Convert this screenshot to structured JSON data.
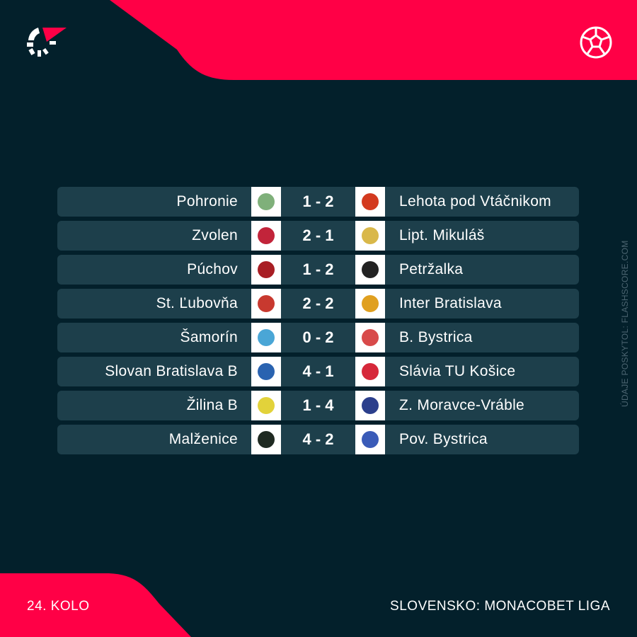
{
  "colors": {
    "background": "#03202b",
    "accent": "#ff0046",
    "row": "#1d3f4b"
  },
  "icons": {
    "brand": "flashscore-logo",
    "sport": "football-icon"
  },
  "matches": [
    {
      "home": "Pohronie",
      "score": "1 - 2",
      "away": "Lehota pod Vtáčnikom",
      "home_color": "#7fb07a",
      "away_color": "#d33a1f"
    },
    {
      "home": "Zvolen",
      "score": "2 - 1",
      "away": "Lipt. Mikuláš",
      "home_color": "#c2243a",
      "away_color": "#d9b84a"
    },
    {
      "home": "Púchov",
      "score": "1 - 2",
      "away": "Petržalka",
      "home_color": "#a81e24",
      "away_color": "#222222"
    },
    {
      "home": "St. Ľubovňa",
      "score": "2 - 2",
      "away": "Inter Bratislava",
      "home_color": "#c8392f",
      "away_color": "#e0a020"
    },
    {
      "home": "Šamorín",
      "score": "0 - 2",
      "away": "B. Bystrica",
      "home_color": "#4aa6d6",
      "away_color": "#d84a4a"
    },
    {
      "home": "Slovan Bratislava B",
      "score": "4 - 1",
      "away": "Slávia TU Košice",
      "home_color": "#2a63b0",
      "away_color": "#d6283a"
    },
    {
      "home": "Žilina B",
      "score": "1 - 4",
      "away": "Z. Moravce-Vráble",
      "home_color": "#e2d23a",
      "away_color": "#2b3f8c"
    },
    {
      "home": "Malženice",
      "score": "4 - 2",
      "away": "Pov. Bystrica",
      "home_color": "#1f2a22",
      "away_color": "#3a5bb8"
    }
  ],
  "credit": "ÚDAJE POSKYTOL: FLASHSCORE.COM",
  "footer": {
    "round": "24. KOLO",
    "league": "SLOVENSKO: MONACOBET LIGA"
  }
}
